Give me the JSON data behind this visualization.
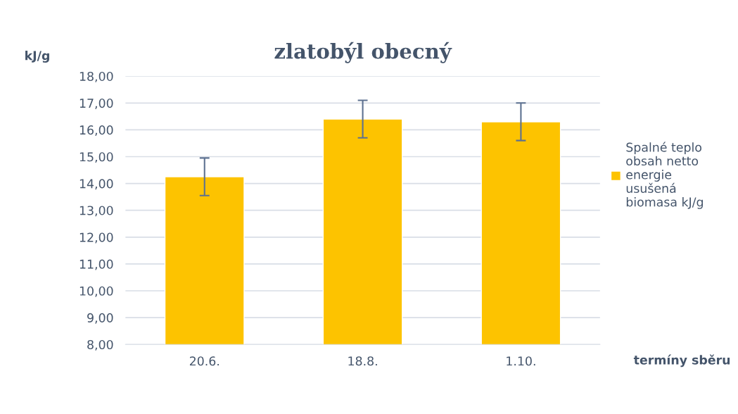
{
  "chart_data": {
    "type": "bar",
    "title": "zlatobýl obecný",
    "ylabel": "kJ/g",
    "xlabel": "termíny sběru",
    "categories": [
      "20.6.",
      "18.8.",
      "1.10."
    ],
    "series": [
      {
        "name": "Spalné teplo\nobsah netto\nenergie\nusušená\nbiomasa kJ/g",
        "color": "#fdc300",
        "values": [
          14.25,
          16.4,
          16.3
        ],
        "errors": [
          0.7,
          0.7,
          0.7
        ]
      }
    ],
    "ylim": [
      8,
      18
    ],
    "yticks": [
      {
        "value": 8,
        "label": "8,00"
      },
      {
        "value": 9,
        "label": "9,00"
      },
      {
        "value": 10,
        "label": "10,00"
      },
      {
        "value": 11,
        "label": "11,00"
      },
      {
        "value": 12,
        "label": "12,00"
      },
      {
        "value": 13,
        "label": "13,00"
      },
      {
        "value": 14,
        "label": "14,00"
      },
      {
        "value": 15,
        "label": "15,00"
      },
      {
        "value": 16,
        "label": "16,00"
      },
      {
        "value": 17,
        "label": "17,00"
      },
      {
        "value": 18,
        "label": "18,00"
      }
    ],
    "grid": "y",
    "legend": "right"
  }
}
